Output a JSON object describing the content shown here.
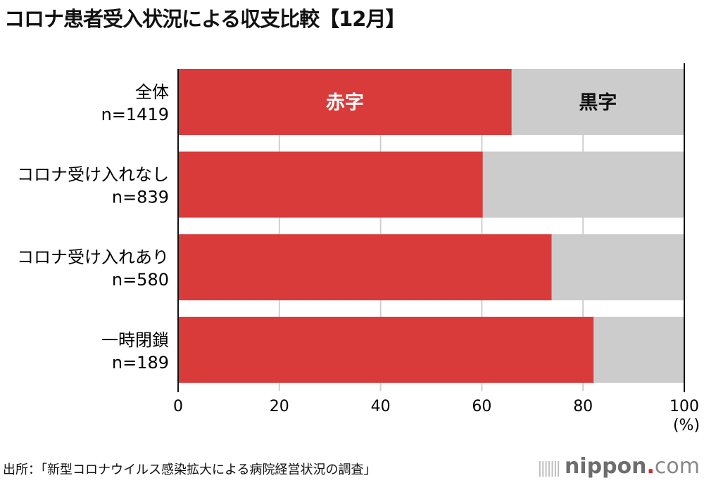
{
  "title": "コロナ患者受入状況による収支比較【12月】",
  "source": "出所：「新型コロナウイルス感染拡大による病院経営状況の調査」",
  "logo": {
    "name": "nippon",
    "dot": ".",
    "suffix": "com"
  },
  "chart_data": {
    "type": "bar",
    "orientation": "horizontal",
    "stacked": true,
    "categories": [
      {
        "label": "全体",
        "n": "n=1419"
      },
      {
        "label": "コロナ受け入れなし",
        "n": "n=839"
      },
      {
        "label": "コロナ受け入れあり",
        "n": "n=580"
      },
      {
        "label": "一時閉鎖",
        "n": "n=189"
      }
    ],
    "series": [
      {
        "name": "赤字",
        "values": [
          65.9,
          60.2,
          73.8,
          82.1
        ],
        "color": "#d93b3b"
      },
      {
        "name": "黒字",
        "values": [
          34.1,
          39.8,
          26.2,
          17.9
        ],
        "color": "#cccccc"
      }
    ],
    "xlim": [
      0,
      100
    ],
    "xticks": [
      "0",
      "20",
      "40",
      "60",
      "80",
      "100"
    ],
    "xlabel": "(%)",
    "grid": true
  }
}
